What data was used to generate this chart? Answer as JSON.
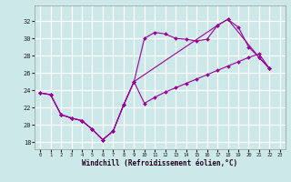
{
  "xlabel": "Windchill (Refroidissement éolien,°C)",
  "bg_color": "#cce8e8",
  "line_color": "#990099",
  "grid_color": "#ffffff",
  "x_ticks": [
    0,
    1,
    2,
    3,
    4,
    5,
    6,
    7,
    8,
    9,
    10,
    11,
    12,
    13,
    14,
    15,
    16,
    17,
    18,
    19,
    20,
    21,
    22,
    23
  ],
  "y_ticks": [
    18,
    20,
    22,
    24,
    26,
    28,
    30,
    32
  ],
  "ylim": [
    17.2,
    33.8
  ],
  "xlim": [
    -0.5,
    23.5
  ],
  "s1_x": [
    0,
    1,
    2,
    3,
    4,
    5,
    6,
    7,
    8,
    9,
    10,
    11,
    12,
    13,
    14,
    15,
    16,
    17,
    18,
    19,
    20,
    21,
    22
  ],
  "s1_y": [
    23.7,
    23.5,
    21.2,
    20.8,
    20.5,
    19.5,
    18.3,
    19.3,
    22.3,
    25.0,
    30.0,
    30.7,
    30.5,
    30.0,
    29.9,
    29.7,
    29.9,
    31.5,
    32.2,
    31.3,
    29.0,
    27.8,
    26.5
  ],
  "s2_x": [
    0,
    1,
    2,
    3,
    4,
    5,
    6,
    7,
    8,
    9,
    10,
    11,
    12,
    13,
    14,
    15,
    16,
    17,
    18,
    19,
    20,
    21,
    22
  ],
  "s2_y": [
    23.7,
    23.5,
    21.2,
    20.8,
    20.5,
    19.5,
    18.3,
    19.3,
    22.3,
    25.0,
    22.5,
    23.2,
    23.8,
    24.3,
    24.8,
    25.3,
    25.8,
    26.3,
    26.8,
    27.3,
    27.8,
    28.2,
    26.5
  ],
  "s3_x": [
    0,
    1,
    2,
    3,
    4,
    5,
    6,
    7,
    8,
    9,
    17,
    18,
    21,
    22
  ],
  "s3_y": [
    23.7,
    23.5,
    21.2,
    20.8,
    20.5,
    19.5,
    18.3,
    19.3,
    22.3,
    25.0,
    31.5,
    32.2,
    27.8,
    26.5
  ]
}
